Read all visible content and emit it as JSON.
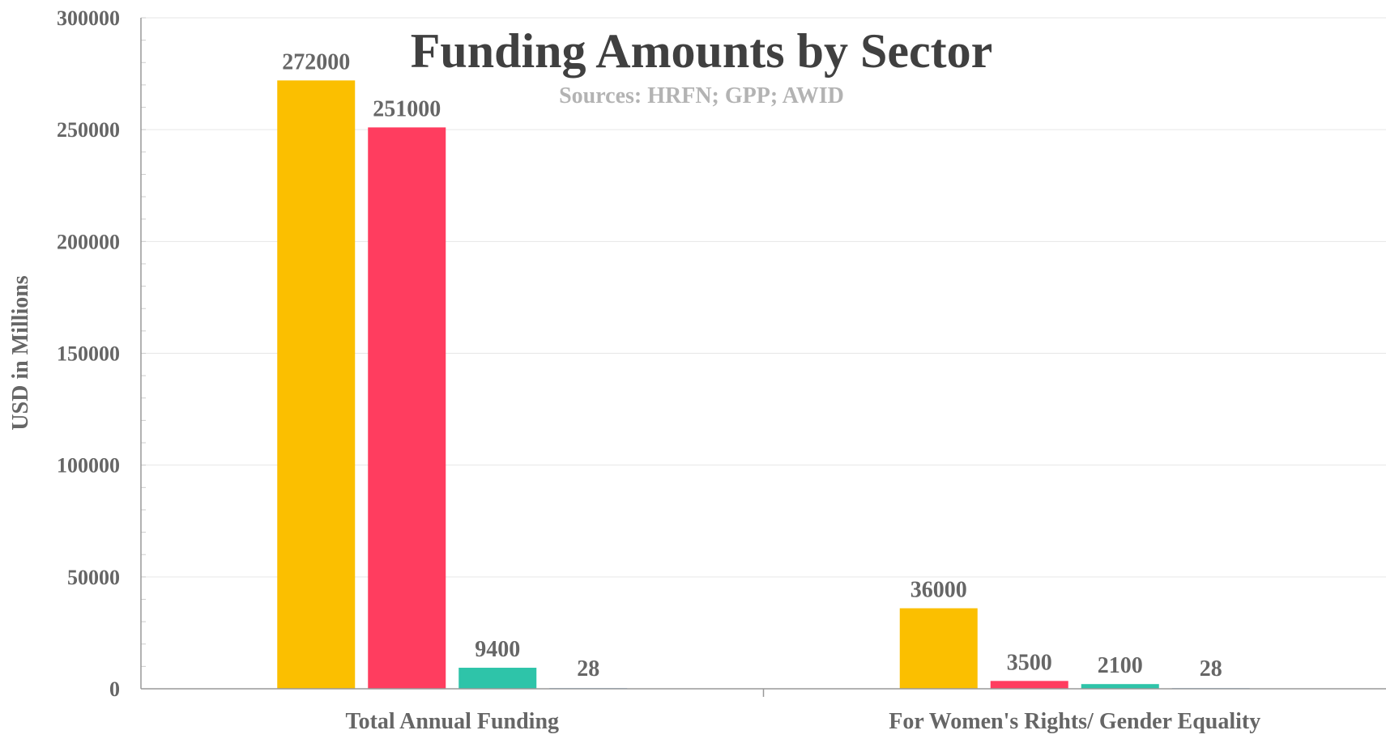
{
  "chart_data": {
    "type": "bar",
    "title": "Funding Amounts by Sector",
    "subtitle": "Sources: HRFN; GPP; AWID",
    "xlabel": "",
    "ylabel": "USD in Millions",
    "categories": [
      "Total Annual Funding",
      "For Women's Rights/ Gender Equality"
    ],
    "ylim": [
      0,
      300000
    ],
    "yticks": [
      "0",
      "50000",
      "100000",
      "150000",
      "200000",
      "250000",
      "300000"
    ],
    "grid": true,
    "legend": "none",
    "series": [
      {
        "values": [
          272000,
          36000
        ],
        "labels": [
          "272000",
          "36000"
        ],
        "color": "#fbbf00"
      },
      {
        "values": [
          251000,
          3500
        ],
        "labels": [
          "251000",
          "3500"
        ],
        "color": "#ff3d5f"
      },
      {
        "values": [
          9400,
          2100
        ],
        "labels": [
          "9400",
          "2100"
        ],
        "color": "#2ec4a9"
      },
      {
        "values": [
          28,
          28
        ],
        "labels": [
          "28",
          "28"
        ],
        "color": "#6a9fd6"
      }
    ]
  }
}
